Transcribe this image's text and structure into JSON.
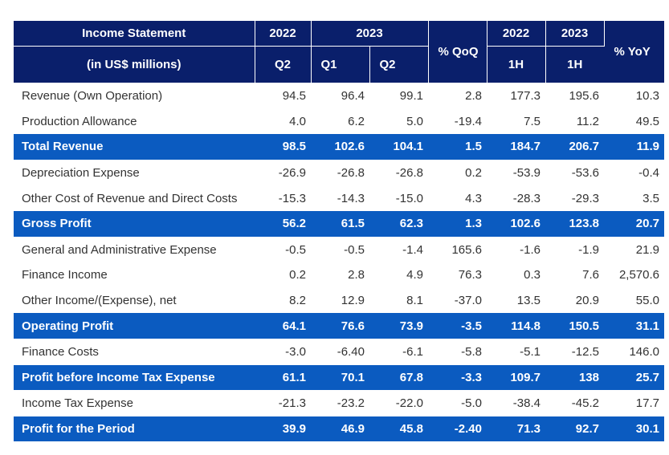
{
  "header": {
    "stub_title": "Income Statement",
    "stub_subtitle": "(in US$ millions)",
    "year_2022": "2022",
    "year_2023": "2023",
    "col_q2_2022": "Q2",
    "col_q1_2023": "Q1",
    "col_q2_2023": "Q2",
    "col_qoq": "% QoQ",
    "year_2022_h": "2022",
    "year_2023_h": "2023",
    "col_1h_2022": "1H",
    "col_1h_2023": "1H",
    "col_yoy": "% YoY"
  },
  "rows": [
    {
      "label": "Revenue (Own Operation)",
      "total": false,
      "values": [
        "94.5",
        "96.4",
        "99.1",
        "2.8",
        "177.3",
        "195.6",
        "10.3"
      ]
    },
    {
      "label": "Production Allowance",
      "total": false,
      "values": [
        "4.0",
        "6.2",
        "5.0",
        "-19.4",
        "7.5",
        "11.2",
        "49.5"
      ]
    },
    {
      "label": "Total Revenue",
      "total": true,
      "values": [
        "98.5",
        "102.6",
        "104.1",
        "1.5",
        "184.7",
        "206.7",
        "11.9"
      ]
    },
    {
      "label": "Depreciation Expense",
      "total": false,
      "values": [
        "-26.9",
        "-26.8",
        "-26.8",
        "0.2",
        "-53.9",
        "-53.6",
        "-0.4"
      ]
    },
    {
      "label": "Other Cost of Revenue and Direct Costs",
      "total": false,
      "values": [
        "-15.3",
        "-14.3",
        "-15.0",
        "4.3",
        "-28.3",
        "-29.3",
        "3.5"
      ]
    },
    {
      "label": "Gross Profit",
      "total": true,
      "values": [
        "56.2",
        "61.5",
        "62.3",
        "1.3",
        "102.6",
        "123.8",
        "20.7"
      ]
    },
    {
      "label": "General and Administrative Expense",
      "total": false,
      "values": [
        "-0.5",
        "-0.5",
        "-1.4",
        "165.6",
        "-1.6",
        "-1.9",
        "21.9"
      ]
    },
    {
      "label": "Finance Income",
      "total": false,
      "values": [
        "0.2",
        "2.8",
        "4.9",
        "76.3",
        "0.3",
        "7.6",
        "2,570.6"
      ]
    },
    {
      "label": "Other Income/(Expense), net",
      "total": false,
      "values": [
        "8.2",
        "12.9",
        "8.1",
        "-37.0",
        "13.5",
        "20.9",
        "55.0"
      ]
    },
    {
      "label": "Operating Profit",
      "total": true,
      "values": [
        "64.1",
        "76.6",
        "73.9",
        "-3.5",
        "114.8",
        "150.5",
        "31.1"
      ]
    },
    {
      "label": "Finance Costs",
      "total": false,
      "values": [
        "-3.0",
        "-6.40",
        "-6.1",
        "-5.8",
        "-5.1",
        "-12.5",
        "146.0"
      ]
    },
    {
      "label": "Profit before Income Tax Expense",
      "total": true,
      "values": [
        "61.1",
        "70.1",
        "67.8",
        "-3.3",
        "109.7",
        "138",
        "25.7"
      ]
    },
    {
      "label": "Income Tax Expense",
      "total": false,
      "values": [
        "-21.3",
        "-23.2",
        "-22.0",
        "-5.0",
        "-38.4",
        "-45.2",
        "17.7"
      ]
    },
    {
      "label": "Profit for the Period",
      "total": true,
      "values": [
        "39.9",
        "46.9",
        "45.8",
        "-2.40",
        "71.3",
        "92.7",
        "30.1"
      ]
    }
  ],
  "colors": {
    "header_bg": "#0a1f6b",
    "total_bg": "#0b5bc0",
    "text": "#333333"
  }
}
